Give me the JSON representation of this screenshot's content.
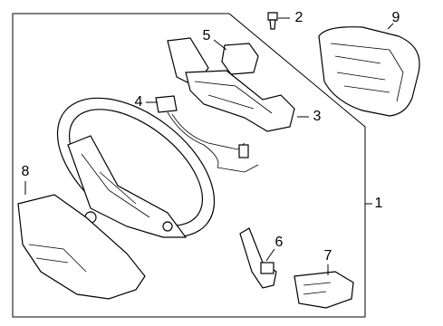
{
  "callouts": [
    {
      "label": "1"
    },
    {
      "label": "2"
    },
    {
      "label": "3"
    },
    {
      "label": "4"
    },
    {
      "label": "5"
    },
    {
      "label": "6"
    },
    {
      "label": "7"
    },
    {
      "label": "8"
    },
    {
      "label": "9"
    }
  ]
}
